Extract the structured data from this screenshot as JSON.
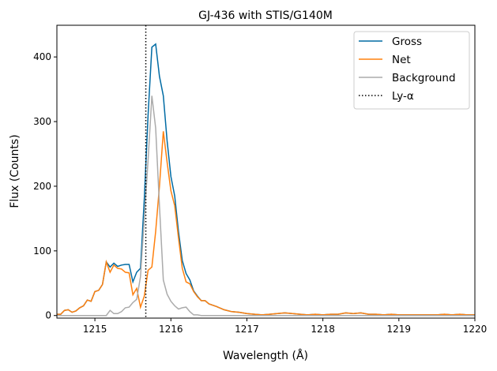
{
  "chart_data": {
    "type": "line",
    "title": "GJ-436 with STIS/G140M",
    "xlabel": "Wavelength (Å)",
    "ylabel": "Flux (Counts)",
    "xlim": [
      1214.5,
      1220
    ],
    "ylim": [
      -4,
      449
    ],
    "xticks": [
      1215,
      1216,
      1217,
      1218,
      1219,
      1220
    ],
    "yticks": [
      0,
      100,
      200,
      300,
      400
    ],
    "grid": false,
    "legend_placement": "top-right",
    "x": [
      1214.5,
      1214.55,
      1214.6,
      1214.65,
      1214.7,
      1214.75,
      1214.8,
      1214.85,
      1214.9,
      1214.95,
      1215.0,
      1215.05,
      1215.1,
      1215.15,
      1215.2,
      1215.25,
      1215.3,
      1215.35,
      1215.4,
      1215.45,
      1215.5,
      1215.55,
      1215.6,
      1215.65,
      1215.7,
      1215.75,
      1215.8,
      1215.85,
      1215.9,
      1215.95,
      1216.0,
      1216.05,
      1216.1,
      1216.15,
      1216.2,
      1216.25,
      1216.3,
      1216.35,
      1216.4,
      1216.45,
      1216.5,
      1216.6,
      1216.7,
      1216.8,
      1216.9,
      1217.0,
      1217.1,
      1217.2,
      1217.3,
      1217.4,
      1217.5,
      1217.6,
      1217.7,
      1217.8,
      1217.9,
      1218.0,
      1218.1,
      1218.2,
      1218.3,
      1218.4,
      1218.5,
      1218.6,
      1218.7,
      1218.8,
      1218.9,
      1219.0,
      1219.1,
      1219.2,
      1219.3,
      1219.4,
      1219.5,
      1219.6,
      1219.7,
      1219.8,
      1219.9,
      1220.0
    ],
    "series": [
      {
        "name": "Gross",
        "color": "#006BA4",
        "style": "solid",
        "values": [
          2,
          2,
          8,
          9,
          5,
          7,
          12,
          15,
          24,
          22,
          37,
          39,
          48,
          83,
          75,
          81,
          76,
          78,
          79,
          79,
          52,
          67,
          73,
          180,
          310,
          415,
          420,
          370,
          340,
          270,
          215,
          185,
          130,
          85,
          65,
          55,
          38,
          30,
          23,
          23,
          18,
          14,
          9,
          6,
          5,
          3,
          2,
          1,
          2,
          3,
          4,
          3,
          2,
          1,
          2,
          1,
          2,
          2,
          4,
          3,
          4,
          2,
          2,
          1,
          2,
          1,
          1,
          1,
          1,
          1,
          1,
          2,
          1,
          2,
          1,
          1
        ]
      },
      {
        "name": "Net",
        "color": "#FF800E",
        "style": "solid",
        "values": [
          2,
          2,
          8,
          9,
          5,
          7,
          12,
          15,
          24,
          22,
          37,
          39,
          48,
          83,
          67,
          78,
          73,
          72,
          67,
          66,
          32,
          42,
          13,
          30,
          70,
          75,
          130,
          200,
          285,
          237,
          193,
          170,
          120,
          73,
          52,
          49,
          37,
          29,
          23,
          23,
          18,
          14,
          9,
          6,
          5,
          3,
          2,
          1,
          2,
          3,
          4,
          3,
          2,
          1,
          2,
          1,
          2,
          2,
          4,
          3,
          4,
          2,
          2,
          1,
          2,
          1,
          1,
          1,
          1,
          1,
          1,
          2,
          1,
          2,
          1,
          1
        ]
      },
      {
        "name": "Background",
        "color": "#ABABAB",
        "style": "solid",
        "values": [
          0,
          0,
          0,
          0,
          0,
          0,
          0,
          0,
          0,
          0,
          0,
          0,
          0,
          0,
          8,
          3,
          3,
          6,
          12,
          13,
          20,
          25,
          60,
          150,
          240,
          340,
          290,
          170,
          55,
          33,
          22,
          15,
          10,
          12,
          13,
          6,
          1,
          1,
          0,
          0,
          0,
          0,
          0,
          0,
          0,
          0,
          0,
          0,
          0,
          0,
          0,
          0,
          0,
          0,
          0,
          0,
          0,
          0,
          0,
          0,
          0,
          0,
          0,
          0,
          0,
          0,
          0,
          0,
          0,
          0,
          0,
          0,
          0,
          0,
          0,
          0
        ]
      }
    ],
    "vline": {
      "name": "Ly-α",
      "x": 1215.67,
      "color": "#000000",
      "style": "dotted"
    },
    "legend": [
      "Gross",
      "Net",
      "Background",
      "Ly-α"
    ]
  }
}
